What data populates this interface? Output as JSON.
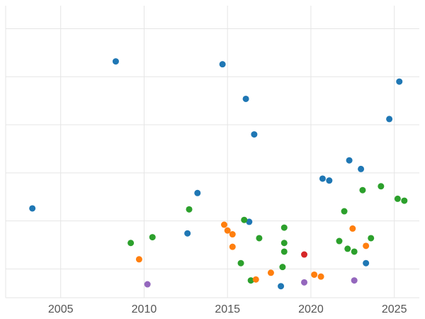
{
  "figure": {
    "background": "#ffffff",
    "grid_color": "#e5e5e5",
    "tick_label_color": "#555555"
  },
  "chart_data": {
    "type": "scatter",
    "title": "",
    "xlabel": "",
    "ylabel": "",
    "xlim": [
      2001.7,
      2026.5
    ],
    "ylim": [
      2.0,
      32.4
    ],
    "x_ticks": [
      2005,
      2010,
      2015,
      2020,
      2025
    ],
    "x_tick_labels": [
      "2005",
      "2010",
      "2015",
      "2020",
      "2025"
    ],
    "y_gridline_values": [
      5,
      10,
      15,
      20,
      25,
      30
    ],
    "grid": true,
    "legend": "none",
    "marker_radius": 4.5,
    "series": [
      {
        "name": "series-blue",
        "color": "#1f77b4",
        "points": [
          {
            "x": 2003.3,
            "y": 11.3
          },
          {
            "x": 2008.3,
            "y": 26.6
          },
          {
            "x": 2014.7,
            "y": 26.3
          },
          {
            "x": 2016.1,
            "y": 22.7
          },
          {
            "x": 2016.6,
            "y": 19.0
          },
          {
            "x": 2025.3,
            "y": 24.5
          },
          {
            "x": 2024.7,
            "y": 20.6
          },
          {
            "x": 2022.3,
            "y": 16.3
          },
          {
            "x": 2023.0,
            "y": 15.4
          },
          {
            "x": 2020.7,
            "y": 14.4
          },
          {
            "x": 2021.1,
            "y": 14.2
          },
          {
            "x": 2013.2,
            "y": 12.9
          },
          {
            "x": 2012.6,
            "y": 8.7
          },
          {
            "x": 2016.3,
            "y": 9.9
          },
          {
            "x": 2023.3,
            "y": 5.6
          },
          {
            "x": 2018.2,
            "y": 3.2
          }
        ]
      },
      {
        "name": "series-green",
        "color": "#2ca02c",
        "points": [
          {
            "x": 2009.2,
            "y": 7.7
          },
          {
            "x": 2010.5,
            "y": 8.3
          },
          {
            "x": 2012.7,
            "y": 11.2
          },
          {
            "x": 2016.0,
            "y": 10.1
          },
          {
            "x": 2016.9,
            "y": 8.2
          },
          {
            "x": 2018.4,
            "y": 9.3
          },
          {
            "x": 2018.4,
            "y": 7.7
          },
          {
            "x": 2018.4,
            "y": 6.8
          },
          {
            "x": 2018.3,
            "y": 5.2
          },
          {
            "x": 2015.8,
            "y": 5.6
          },
          {
            "x": 2016.4,
            "y": 3.8
          },
          {
            "x": 2022.0,
            "y": 11.0
          },
          {
            "x": 2021.7,
            "y": 7.9
          },
          {
            "x": 2022.2,
            "y": 7.1
          },
          {
            "x": 2022.6,
            "y": 6.8
          },
          {
            "x": 2023.6,
            "y": 8.2
          },
          {
            "x": 2024.2,
            "y": 13.6
          },
          {
            "x": 2023.1,
            "y": 13.2
          },
          {
            "x": 2025.2,
            "y": 12.3
          },
          {
            "x": 2025.6,
            "y": 12.1
          }
        ]
      },
      {
        "name": "series-orange",
        "color": "#ff7f0e",
        "points": [
          {
            "x": 2009.7,
            "y": 6.0
          },
          {
            "x": 2014.8,
            "y": 9.6
          },
          {
            "x": 2015.0,
            "y": 9.0
          },
          {
            "x": 2015.3,
            "y": 8.6
          },
          {
            "x": 2015.3,
            "y": 7.3
          },
          {
            "x": 2016.7,
            "y": 3.9
          },
          {
            "x": 2017.6,
            "y": 4.6
          },
          {
            "x": 2020.2,
            "y": 4.4
          },
          {
            "x": 2020.6,
            "y": 4.2
          },
          {
            "x": 2022.5,
            "y": 9.2
          },
          {
            "x": 2023.3,
            "y": 7.4
          }
        ]
      },
      {
        "name": "series-purple",
        "color": "#9467bd",
        "points": [
          {
            "x": 2010.2,
            "y": 3.4
          },
          {
            "x": 2019.6,
            "y": 3.6
          },
          {
            "x": 2022.6,
            "y": 3.8
          }
        ]
      },
      {
        "name": "series-red",
        "color": "#d62728",
        "points": [
          {
            "x": 2019.6,
            "y": 6.5
          }
        ]
      }
    ]
  }
}
